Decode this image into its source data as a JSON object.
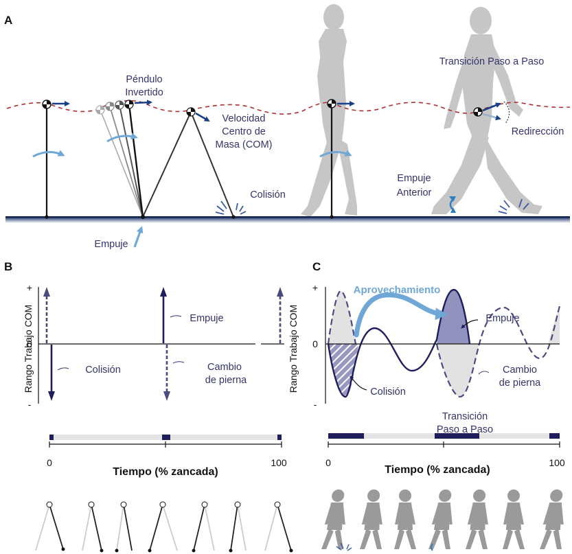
{
  "panels": {
    "a": "A",
    "b": "B",
    "c": "C"
  },
  "panel_a": {
    "inverted_pendulum_l1": "Péndulo",
    "inverted_pendulum_l2": "Invertido",
    "velocity_l1": "Velocidad",
    "velocity_l2": "Centro de",
    "velocity_l3": "Masa (COM)",
    "collision": "Colisión",
    "push": "Empuje",
    "transition": "Transición Paso a Paso",
    "redirection": "Redirección",
    "anterior_push_l1": "Empuje",
    "anterior_push_l2": "Anterior"
  },
  "panel_b": {
    "y_axis_label": "Rango Trabajo COM",
    "y_plus": "+",
    "y_zero": "0",
    "y_minus": "-",
    "push": "Empuje",
    "collision": "Colisión",
    "leg_change_l1": "Cambio",
    "leg_change_l2": "de pierna",
    "x_title": "Tiempo (% zancada)",
    "x_tick_0": "0",
    "x_tick_100": "100"
  },
  "panel_c": {
    "y_axis_label": "Rango Trabajo COM",
    "y_plus": "+",
    "y_zero": "0",
    "y_minus": "-",
    "harvest": "Aprovechamiento",
    "push": "Empuje",
    "collision": "Colisión",
    "leg_change_l1": "Cambio",
    "leg_change_l2": "de pierna",
    "transition_l1": "Transición",
    "transition_l2": "Paso a Paso",
    "x_title": "Tiempo (% zancada)",
    "x_tick_0": "0",
    "x_tick_100": "100"
  },
  "colors": {
    "navy": "#1e1e5c",
    "dashed_purple": "#4a4a80",
    "com_path": "#b03030",
    "highlight_blue": "#6fa8d6",
    "arrow_blue": "#1a3f8a",
    "silhouette_gray": "#c4c4c4",
    "ground": "#0d1f4a"
  }
}
